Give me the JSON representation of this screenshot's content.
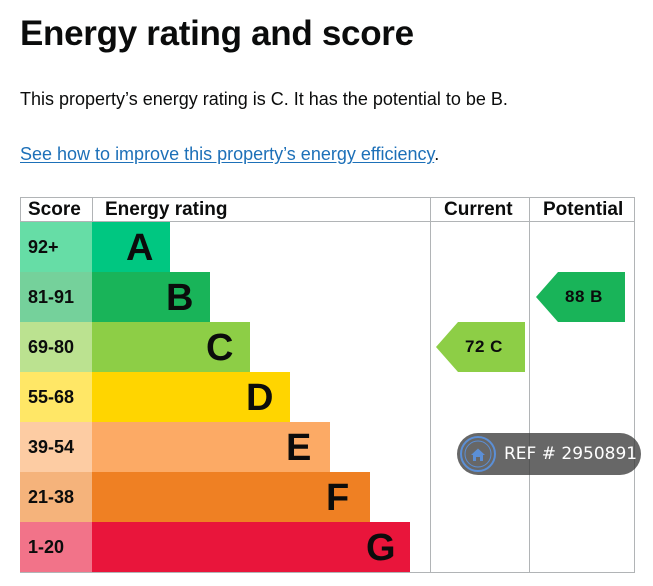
{
  "page": {
    "title": "Energy rating and score",
    "summary": "This property’s energy rating is C. It has the potential to be B.",
    "improve_link": "See how to improve this property’s energy efficiency",
    "improve_link_suffix": "."
  },
  "chart_data": {
    "type": "bar",
    "headers": [
      "Score",
      "Energy rating",
      "Current",
      "Potential"
    ],
    "bands": [
      {
        "letter": "A",
        "score_range": "92+",
        "min": 92,
        "max": 100,
        "bar_color": "#00c781",
        "score_bg": "#66dda6"
      },
      {
        "letter": "B",
        "score_range": "81-91",
        "min": 81,
        "max": 91,
        "bar_color": "#19b459",
        "score_bg": "#75d19b"
      },
      {
        "letter": "C",
        "score_range": "69-80",
        "min": 69,
        "max": 80,
        "bar_color": "#8dce46",
        "score_bg": "#bbe290"
      },
      {
        "letter": "D",
        "score_range": "55-68",
        "min": 55,
        "max": 68,
        "bar_color": "#ffd500",
        "score_bg": "#ffe766"
      },
      {
        "letter": "E",
        "score_range": "39-54",
        "min": 39,
        "max": 54,
        "bar_color": "#fcaa65",
        "score_bg": "#fdcca3"
      },
      {
        "letter": "F",
        "score_range": "21-38",
        "min": 21,
        "max": 38,
        "bar_color": "#ef8023",
        "score_bg": "#f5b37b"
      },
      {
        "letter": "G",
        "score_range": "1-20",
        "min": 1,
        "max": 20,
        "bar_color": "#e9153b",
        "score_bg": "#f27389"
      }
    ],
    "current": {
      "score": 72,
      "band": "C",
      "label": "72 C",
      "color": "#8dce46"
    },
    "potential": {
      "score": 88,
      "band": "B",
      "label": "88 B",
      "color": "#19b459"
    }
  },
  "watermark": {
    "text": "REF # 2950891",
    "icon": "home-icon"
  }
}
